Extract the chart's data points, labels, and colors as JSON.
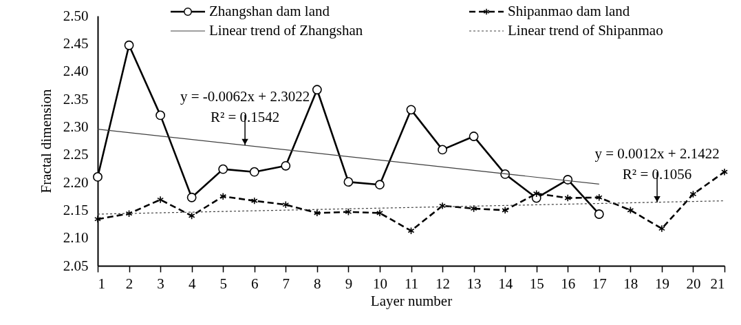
{
  "chart_data": {
    "type": "line",
    "xlabel": "Layer number",
    "ylabel": "Fractal dimension",
    "x": [
      1,
      2,
      3,
      4,
      5,
      6,
      7,
      8,
      9,
      10,
      11,
      12,
      13,
      14,
      15,
      16,
      17,
      18,
      19,
      20,
      21
    ],
    "xlim": [
      1,
      21
    ],
    "xticks": [
      1,
      2,
      3,
      4,
      5,
      6,
      7,
      8,
      9,
      10,
      11,
      12,
      13,
      14,
      15,
      16,
      17,
      18,
      19,
      20,
      21
    ],
    "ylim": [
      2.05,
      2.5
    ],
    "yticks": [
      {
        "value": 2.05,
        "label": "2.05"
      },
      {
        "value": 2.1,
        "label": "2.10"
      },
      {
        "value": 2.15,
        "label": "2.15"
      },
      {
        "value": 2.2,
        "label": "2.20"
      },
      {
        "value": 2.25,
        "label": "2.25"
      },
      {
        "value": 2.3,
        "label": "2.30"
      },
      {
        "value": 2.35,
        "label": "2.35"
      },
      {
        "value": 2.4,
        "label": "2.40"
      },
      {
        "value": 2.45,
        "label": "2.45"
      },
      {
        "value": 2.5,
        "label": "2.50"
      }
    ],
    "grid": false,
    "legend": "top",
    "series": [
      {
        "name": "Zhangshan dam land",
        "color": "#000000",
        "marker": "circle",
        "line_style": "solid",
        "x": [
          1,
          2,
          3,
          4,
          5,
          6,
          7,
          8,
          9,
          10,
          11,
          12,
          13,
          14,
          15,
          16,
          17
        ],
        "values": [
          2.21,
          2.447,
          2.321,
          2.173,
          2.224,
          2.219,
          2.23,
          2.367,
          2.201,
          2.196,
          2.331,
          2.259,
          2.283,
          2.215,
          2.172,
          2.205,
          2.143
        ]
      },
      {
        "name": "Shipanmao dam land",
        "color": "#000000",
        "marker": "cross",
        "line_style": "dashed",
        "values": [
          2.134,
          2.144,
          2.169,
          2.14,
          2.175,
          2.167,
          2.16,
          2.145,
          2.147,
          2.145,
          2.113,
          2.158,
          2.153,
          2.15,
          2.18,
          2.172,
          2.173,
          2.15,
          2.117,
          2.179,
          2.219
        ]
      },
      {
        "name": "Linear trend of Zhangshan",
        "color": "#404040",
        "marker": "none",
        "line_style": "solid",
        "x": [
          1,
          17
        ],
        "values": [
          2.296,
          2.197
        ]
      },
      {
        "name": "Linear trend of Shipanmao",
        "color": "#404040",
        "marker": "none",
        "line_style": "dotted",
        "x": [
          1,
          21
        ],
        "values": [
          2.143,
          2.167
        ]
      }
    ],
    "annotations": [
      {
        "text": "y = -0.0062x + 2.3022\nR² = 0.1542",
        "x": 5.7,
        "y": 2.267
      },
      {
        "text": "y = 0.0012x + 2.1422\nR² = 0.1056",
        "x": 18.85,
        "y": 2.164
      }
    ]
  }
}
